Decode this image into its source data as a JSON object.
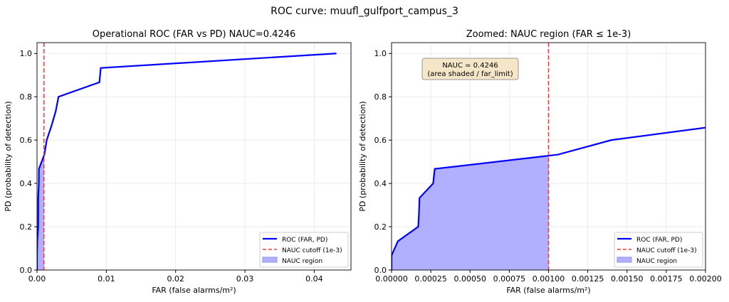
{
  "chart_data": {
    "suptitle": "ROC curve: muufl_gulfport_campus_3",
    "roc": {
      "far": [
        0,
        0,
        4e-05,
        0.00017,
        0.000175,
        0.000178,
        0.000265,
        0.000275,
        0.00106,
        0.0014,
        0.0021,
        0.0027,
        0.0031,
        0.009,
        0.0092,
        0.0432
      ],
      "pd": [
        0,
        0.067,
        0.133,
        0.2,
        0.267,
        0.333,
        0.4,
        0.467,
        0.533,
        0.6,
        0.667,
        0.733,
        0.8,
        0.867,
        0.933,
        1.0
      ]
    },
    "cutoff": 0.001,
    "colors": {
      "roc": "#0000ff",
      "cutoff": "#ff3333",
      "fill": "#b0b0ff",
      "annot_bg": "#f5e6c8"
    },
    "legend": [
      "ROC (FAR, PD)",
      "NAUC cutoff (1e-3)",
      "NAUC region"
    ],
    "panels": [
      {
        "type": "line",
        "title": "Operational ROC (FAR vs PD)  NAUC=0.4246",
        "xlabel": "FAR (false alarms/m²)",
        "ylabel": "PD (probability of detection)",
        "xlim": [
          0,
          0.0453
        ],
        "ylim": [
          -0.0,
          1.05
        ],
        "xticks": [
          0,
          0.01,
          0.02,
          0.03,
          0.04
        ],
        "xtick_labels": [
          "0.00",
          "0.01",
          "0.02",
          "0.03",
          "0.04"
        ],
        "yticks": [
          0,
          0.2,
          0.4,
          0.6,
          0.8,
          1.0
        ],
        "ytick_labels": [
          "0.0",
          "0.2",
          "0.4",
          "0.6",
          "0.8",
          "1.0"
        ],
        "legend_position": "lower-right",
        "grid": true
      },
      {
        "type": "line",
        "title": "Zoomed: NAUC region (FAR ≤ 1e-3)",
        "xlabel": "FAR (false alarms/m²)",
        "ylabel": "PD (probability of detection)",
        "xlim": [
          0,
          0.002
        ],
        "ylim": [
          0,
          1.05
        ],
        "xticks": [
          0,
          0.00025,
          0.0005,
          0.00075,
          0.001,
          0.00125,
          0.0015,
          0.00175,
          0.002
        ],
        "xtick_labels": [
          "0.00000",
          "0.00025",
          "0.00050",
          "0.00075",
          "0.00100",
          "0.00125",
          "0.00150",
          "0.00175",
          "0.00200"
        ],
        "yticks": [
          0,
          0.2,
          0.4,
          0.6,
          0.8,
          1.0
        ],
        "ytick_labels": [
          "0.0",
          "0.2",
          "0.4",
          "0.6",
          "0.8",
          "1.0"
        ],
        "annotation": [
          "NAUC = 0.4246",
          "(area shaded / far_limit)"
        ],
        "legend_position": "lower-right",
        "grid": true
      }
    ]
  }
}
